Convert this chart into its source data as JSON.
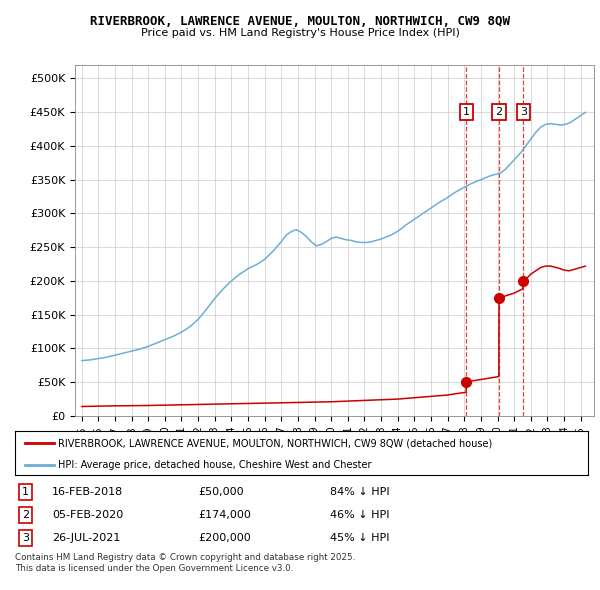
{
  "title_line1": "RIVERBROOK, LAWRENCE AVENUE, MOULTON, NORTHWICH, CW9 8QW",
  "title_line2": "Price paid vs. HM Land Registry's House Price Index (HPI)",
  "ylim": [
    0,
    520000
  ],
  "yticks": [
    0,
    50000,
    100000,
    150000,
    200000,
    250000,
    300000,
    350000,
    400000,
    450000,
    500000
  ],
  "ytick_labels": [
    "£0",
    "£50K",
    "£100K",
    "£150K",
    "£200K",
    "£250K",
    "£300K",
    "£350K",
    "£400K",
    "£450K",
    "£500K"
  ],
  "xlim_start": 1994.6,
  "xlim_end": 2025.8,
  "hpi_color": "#6baed6",
  "sale_color": "#cc0000",
  "vline_color": "#e04040",
  "sale_dates_num": [
    2018.12,
    2020.09,
    2021.56
  ],
  "sale_prices": [
    50000,
    174000,
    200000
  ],
  "sale_labels": [
    "1",
    "2",
    "3"
  ],
  "sale_date_str": [
    "16-FEB-2018",
    "05-FEB-2020",
    "26-JUL-2021"
  ],
  "sale_pct": [
    "84% ↓ HPI",
    "46% ↓ HPI",
    "45% ↓ HPI"
  ],
  "legend_label_red": "RIVERBROOK, LAWRENCE AVENUE, MOULTON, NORTHWICH, CW9 8QW (detached house)",
  "legend_label_blue": "HPI: Average price, detached house, Cheshire West and Chester",
  "footnote": "Contains HM Land Registry data © Crown copyright and database right 2025.\nThis data is licensed under the Open Government Licence v3.0.",
  "bg_color": "#ffffff",
  "grid_color": "#cccccc",
  "hpi_points": [
    [
      1995.0,
      82000
    ],
    [
      1995.5,
      83000
    ],
    [
      1996.0,
      85000
    ],
    [
      1996.5,
      87000
    ],
    [
      1997.0,
      90000
    ],
    [
      1997.5,
      93000
    ],
    [
      1998.0,
      96000
    ],
    [
      1998.5,
      99000
    ],
    [
      1999.0,
      103000
    ],
    [
      1999.5,
      108000
    ],
    [
      2000.0,
      113000
    ],
    [
      2000.5,
      118000
    ],
    [
      2001.0,
      124000
    ],
    [
      2001.5,
      132000
    ],
    [
      2002.0,
      143000
    ],
    [
      2002.5,
      158000
    ],
    [
      2003.0,
      174000
    ],
    [
      2003.5,
      188000
    ],
    [
      2004.0,
      200000
    ],
    [
      2004.5,
      210000
    ],
    [
      2005.0,
      218000
    ],
    [
      2005.5,
      224000
    ],
    [
      2006.0,
      232000
    ],
    [
      2006.5,
      244000
    ],
    [
      2007.0,
      258000
    ],
    [
      2007.3,
      268000
    ],
    [
      2007.6,
      273000
    ],
    [
      2007.9,
      276000
    ],
    [
      2008.2,
      272000
    ],
    [
      2008.5,
      266000
    ],
    [
      2008.8,
      258000
    ],
    [
      2009.1,
      252000
    ],
    [
      2009.4,
      254000
    ],
    [
      2009.7,
      258000
    ],
    [
      2010.0,
      263000
    ],
    [
      2010.3,
      265000
    ],
    [
      2010.6,
      263000
    ],
    [
      2010.9,
      261000
    ],
    [
      2011.2,
      260000
    ],
    [
      2011.5,
      258000
    ],
    [
      2011.8,
      257000
    ],
    [
      2012.1,
      257000
    ],
    [
      2012.4,
      258000
    ],
    [
      2012.7,
      260000
    ],
    [
      2013.0,
      262000
    ],
    [
      2013.3,
      265000
    ],
    [
      2013.6,
      268000
    ],
    [
      2013.9,
      272000
    ],
    [
      2014.2,
      277000
    ],
    [
      2014.5,
      283000
    ],
    [
      2014.8,
      288000
    ],
    [
      2015.1,
      293000
    ],
    [
      2015.4,
      298000
    ],
    [
      2015.7,
      303000
    ],
    [
      2016.0,
      308000
    ],
    [
      2016.3,
      313000
    ],
    [
      2016.6,
      318000
    ],
    [
      2016.9,
      322000
    ],
    [
      2017.2,
      327000
    ],
    [
      2017.5,
      332000
    ],
    [
      2017.8,
      336000
    ],
    [
      2018.1,
      340000
    ],
    [
      2018.4,
      344000
    ],
    [
      2018.7,
      347000
    ],
    [
      2019.0,
      350000
    ],
    [
      2019.3,
      353000
    ],
    [
      2019.6,
      356000
    ],
    [
      2019.9,
      358000
    ],
    [
      2020.2,
      360000
    ],
    [
      2020.5,
      366000
    ],
    [
      2020.8,
      374000
    ],
    [
      2021.1,
      382000
    ],
    [
      2021.4,
      390000
    ],
    [
      2021.7,
      400000
    ],
    [
      2022.0,
      410000
    ],
    [
      2022.3,
      420000
    ],
    [
      2022.6,
      428000
    ],
    [
      2022.9,
      432000
    ],
    [
      2023.2,
      433000
    ],
    [
      2023.5,
      432000
    ],
    [
      2023.8,
      431000
    ],
    [
      2024.1,
      432000
    ],
    [
      2024.4,
      435000
    ],
    [
      2024.7,
      440000
    ],
    [
      2025.0,
      445000
    ],
    [
      2025.3,
      450000
    ]
  ],
  "red_points": [
    [
      1995.0,
      14000
    ],
    [
      1996.0,
      14500
    ],
    [
      1997.0,
      15000
    ],
    [
      1998.0,
      15200
    ],
    [
      1999.0,
      15500
    ],
    [
      2000.0,
      16000
    ],
    [
      2001.0,
      16500
    ],
    [
      2002.0,
      17000
    ],
    [
      2003.0,
      17500
    ],
    [
      2004.0,
      18000
    ],
    [
      2005.0,
      18500
    ],
    [
      2006.0,
      19000
    ],
    [
      2007.0,
      19500
    ],
    [
      2008.0,
      20000
    ],
    [
      2009.0,
      20500
    ],
    [
      2010.0,
      21000
    ],
    [
      2011.0,
      22000
    ],
    [
      2012.0,
      23000
    ],
    [
      2013.0,
      24000
    ],
    [
      2014.0,
      25000
    ],
    [
      2015.0,
      27000
    ],
    [
      2016.0,
      29000
    ],
    [
      2017.0,
      31000
    ],
    [
      2017.5,
      33000
    ],
    [
      2018.11,
      35000
    ],
    [
      2018.12,
      50000
    ],
    [
      2018.5,
      52000
    ],
    [
      2019.0,
      54000
    ],
    [
      2019.5,
      56000
    ],
    [
      2020.0,
      58000
    ],
    [
      2020.08,
      59000
    ],
    [
      2020.09,
      174000
    ],
    [
      2020.5,
      178000
    ],
    [
      2021.0,
      182000
    ],
    [
      2021.5,
      188000
    ],
    [
      2021.55,
      192000
    ],
    [
      2021.56,
      200000
    ],
    [
      2021.8,
      205000
    ],
    [
      2022.0,
      210000
    ],
    [
      2022.3,
      215000
    ],
    [
      2022.6,
      220000
    ],
    [
      2022.9,
      222000
    ],
    [
      2023.2,
      222000
    ],
    [
      2023.5,
      220000
    ],
    [
      2023.8,
      218000
    ],
    [
      2024.0,
      216000
    ],
    [
      2024.3,
      215000
    ],
    [
      2024.6,
      217000
    ],
    [
      2025.0,
      220000
    ],
    [
      2025.3,
      222000
    ]
  ]
}
